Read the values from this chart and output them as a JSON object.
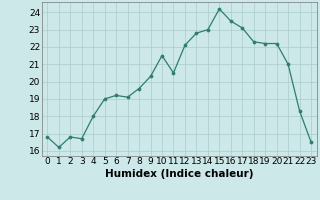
{
  "x": [
    0,
    1,
    2,
    3,
    4,
    5,
    6,
    7,
    8,
    9,
    10,
    11,
    12,
    13,
    14,
    15,
    16,
    17,
    18,
    19,
    20,
    21,
    22,
    23
  ],
  "y": [
    16.8,
    16.2,
    16.8,
    16.7,
    18.0,
    19.0,
    19.2,
    19.1,
    19.6,
    20.3,
    21.5,
    20.5,
    22.1,
    22.8,
    23.0,
    24.2,
    23.5,
    23.1,
    22.3,
    22.2,
    22.2,
    21.0,
    18.3,
    16.5
  ],
  "line_color": "#2e7d6e",
  "marker": "o",
  "marker_size": 2.2,
  "bg_color": "#cce8e8",
  "grid_color": "#aacccc",
  "xlabel": "Humidex (Indice chaleur)",
  "ylabel": "",
  "xlim": [
    -0.5,
    23.5
  ],
  "ylim": [
    15.7,
    24.6
  ],
  "yticks": [
    16,
    17,
    18,
    19,
    20,
    21,
    22,
    23,
    24
  ],
  "xticks": [
    0,
    1,
    2,
    3,
    4,
    5,
    6,
    7,
    8,
    9,
    10,
    11,
    12,
    13,
    14,
    15,
    16,
    17,
    18,
    19,
    20,
    21,
    22,
    23
  ],
  "tick_fontsize": 6.5,
  "label_fontsize": 7.5
}
